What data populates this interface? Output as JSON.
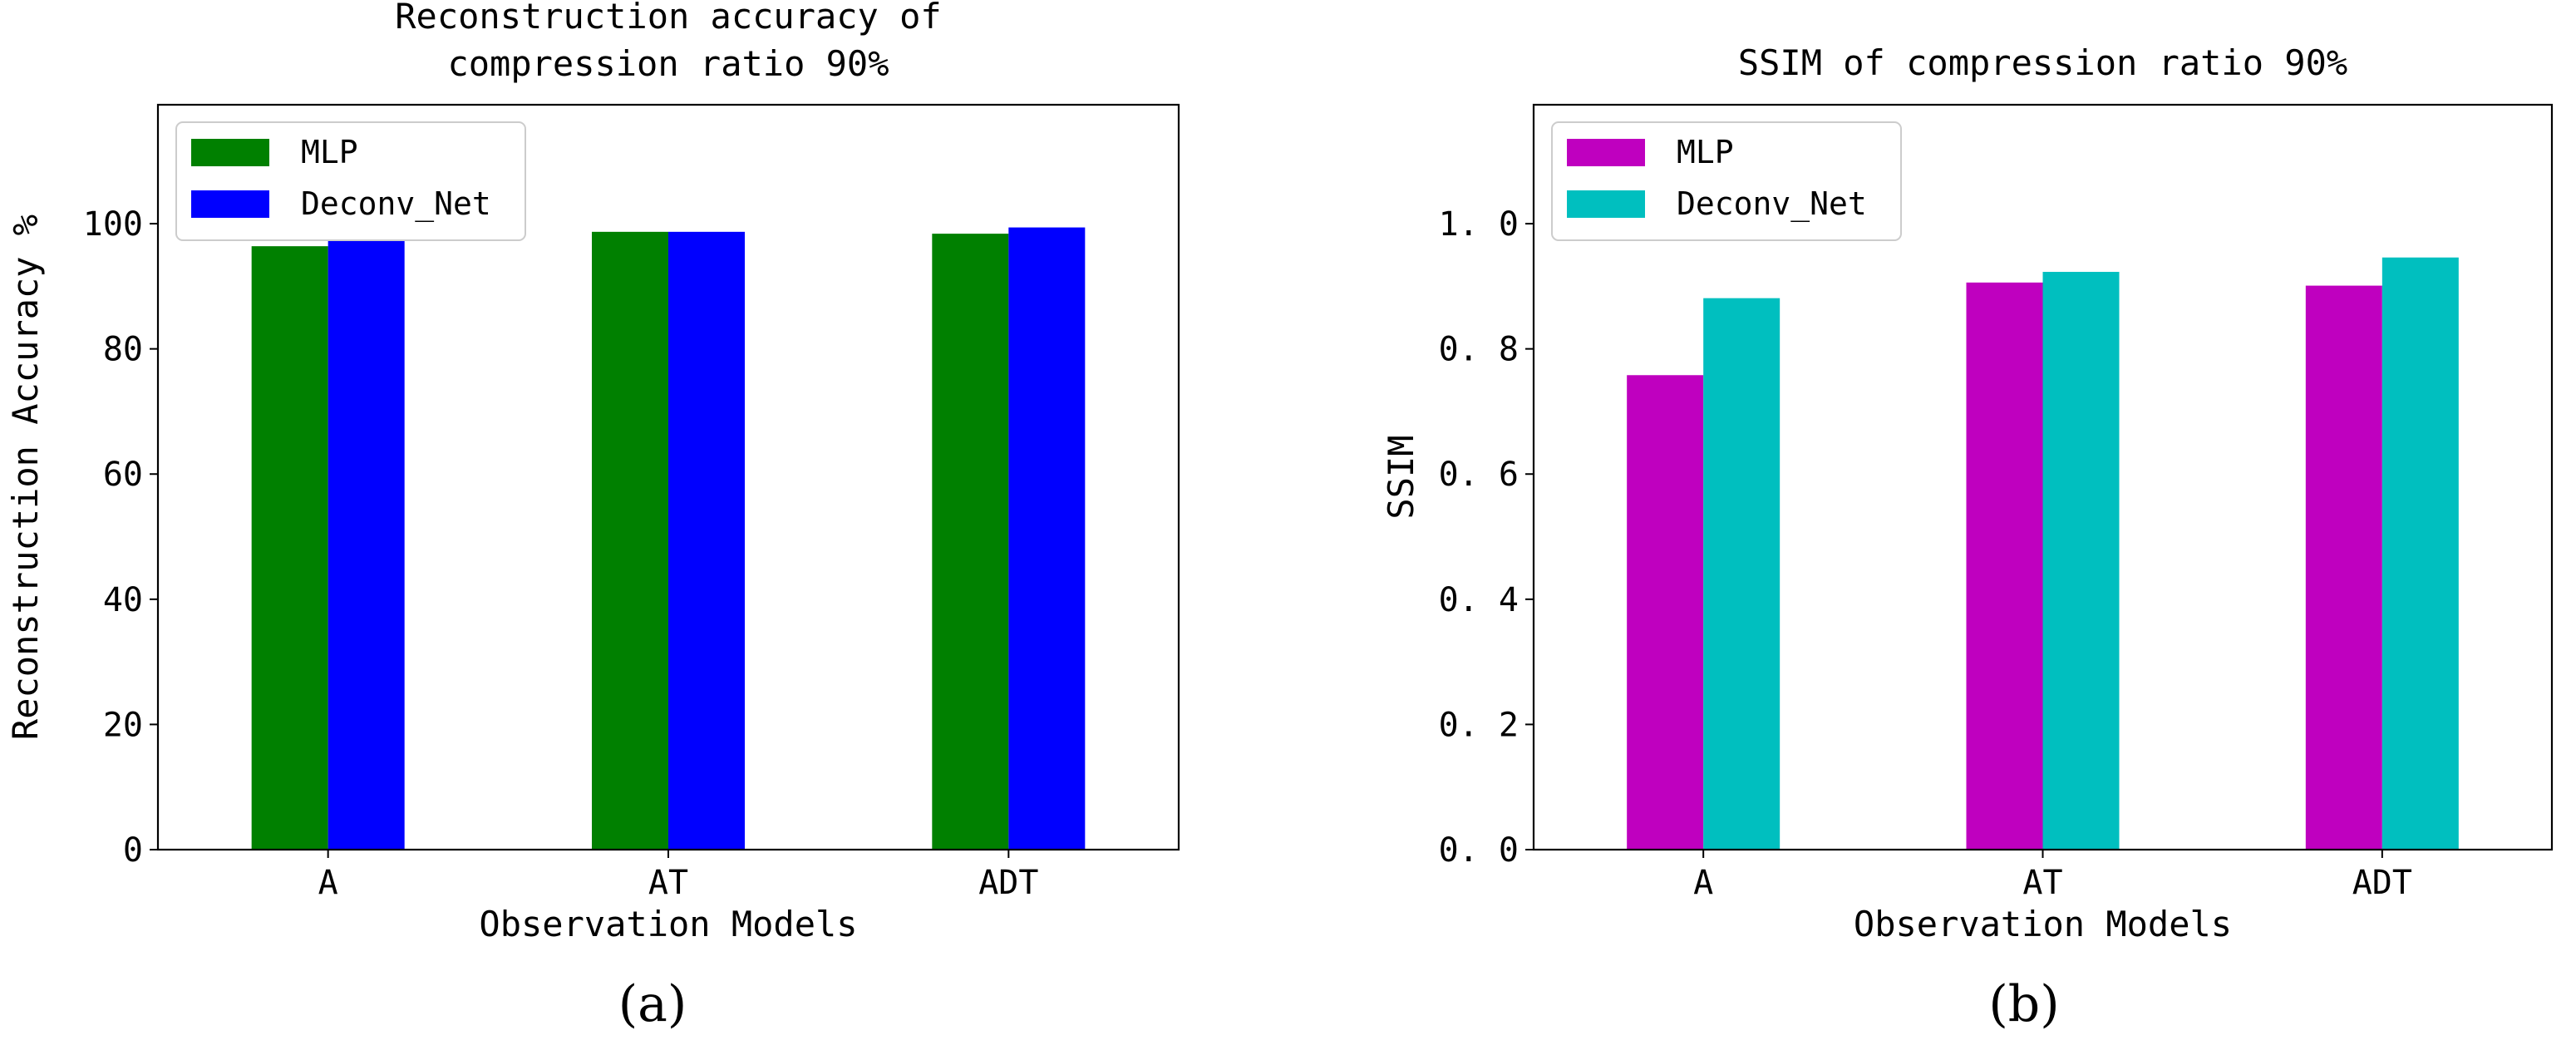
{
  "chart_data": [
    {
      "type": "bar",
      "title_lines": [
        "Reconstruction accuracy of",
        "compression ratio 90%"
      ],
      "xlabel": "Observation Models",
      "ylabel": "Reconstruction Accuracy %",
      "categories": [
        "A",
        "AT",
        "ADT"
      ],
      "series": [
        {
          "name": "MLP",
          "color": "#008000",
          "values": [
            96.4,
            98.7,
            98.4
          ]
        },
        {
          "name": "Deconv_Net",
          "color": "#0000ff",
          "values": [
            98.7,
            98.7,
            99.4
          ]
        }
      ],
      "ylim": [
        0,
        119
      ],
      "yticks": [
        0,
        20,
        40,
        60,
        80,
        100
      ],
      "ytick_labels": [
        "0",
        "20",
        "40",
        "60",
        "80",
        "100"
      ],
      "legend_position": "top-left",
      "grid": false,
      "panel_label": "(a)"
    },
    {
      "type": "bar",
      "title_lines": [
        "SSIM of compression ratio 90%"
      ],
      "xlabel": "Observation Models",
      "ylabel": "SSIM",
      "categories": [
        "A",
        "AT",
        "ADT"
      ],
      "series": [
        {
          "name": "MLP",
          "color": "#bf00bf",
          "values": [
            0.758,
            0.906,
            0.901
          ]
        },
        {
          "name": "Deconv_Net",
          "color": "#00bfbf",
          "values": [
            0.881,
            0.923,
            0.946
          ]
        }
      ],
      "ylim": [
        0,
        1.19
      ],
      "yticks": [
        0,
        0.2,
        0.4,
        0.6,
        0.8,
        1.0
      ],
      "ytick_labels": [
        "0. 0",
        "0. 2",
        "0. 4",
        "0. 6",
        "0. 8",
        "1. 0"
      ],
      "legend_position": "top-left",
      "grid": false,
      "panel_label": "(b)"
    }
  ]
}
